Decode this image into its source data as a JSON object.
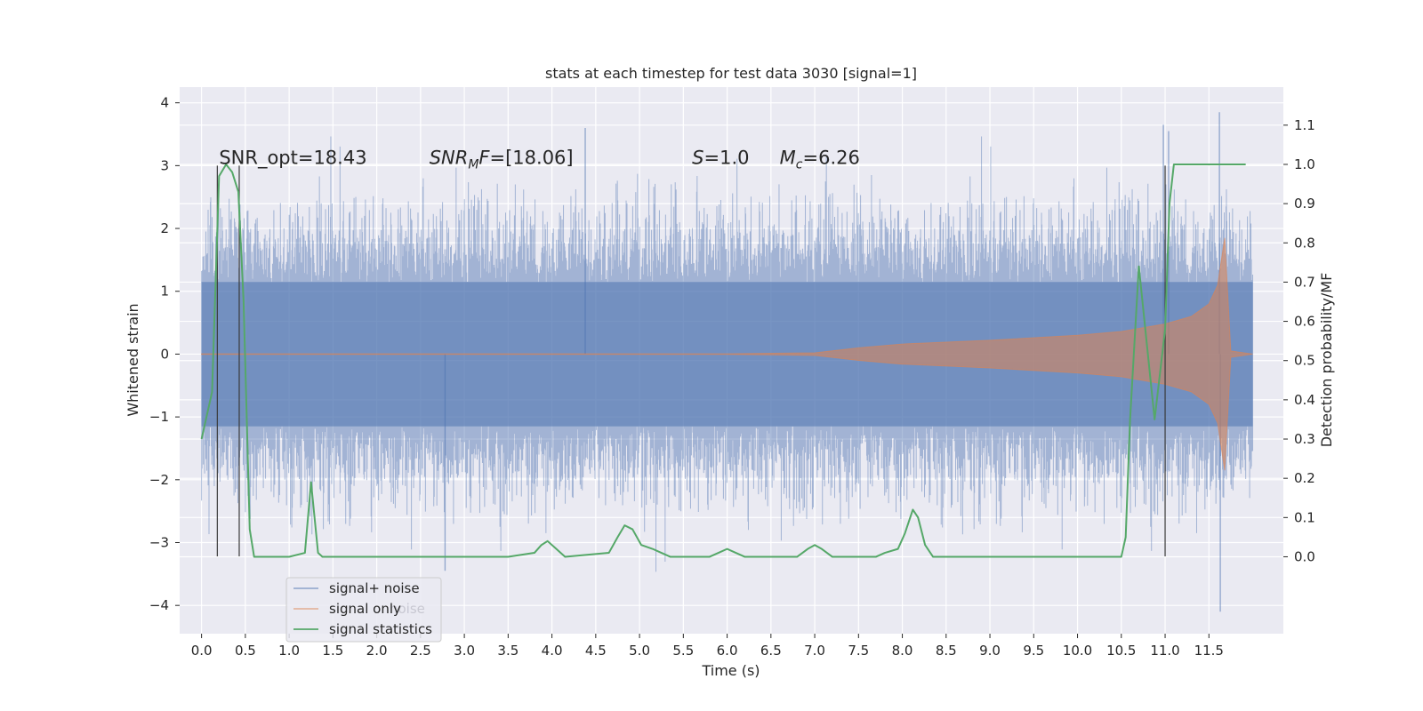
{
  "chart_data": {
    "type": "line",
    "title": "stats at each timestep for test data 3030 [signal=1]",
    "xlabel": "Time (s)",
    "ylabel": "Whitened strain",
    "y2label": "Detection probability/MF",
    "xlim": [
      -0.25,
      12.35
    ],
    "ylim": [
      -4.45,
      4.25
    ],
    "y2lim": [
      -0.196,
      1.197
    ],
    "xticks": [
      0.0,
      0.5,
      1.0,
      1.5,
      2.0,
      2.5,
      3.0,
      3.5,
      4.0,
      4.5,
      5.0,
      5.5,
      6.0,
      6.5,
      7.0,
      7.5,
      8.0,
      8.5,
      9.0,
      9.5,
      10.0,
      10.5,
      11.0,
      11.5
    ],
    "xtick_labels": [
      "0.0",
      "0.5",
      "1.0",
      "1.5",
      "2.0",
      "2.5",
      "3.0",
      "3.5",
      "4.0",
      "4.5",
      "5.0",
      "5.5",
      "6.0",
      "6.5",
      "7.0",
      "7.5",
      "8.0",
      "8.5",
      "9.0",
      "9.5",
      "10.0",
      "10.5",
      "11.0",
      "11.5"
    ],
    "yticks": [
      -4,
      -3,
      -2,
      -1,
      0,
      1,
      2,
      3,
      4
    ],
    "ytick_labels": [
      "−4",
      "−3",
      "−2",
      "−1",
      "0",
      "1",
      "2",
      "3",
      "4"
    ],
    "y2ticks": [
      0.0,
      0.1,
      0.2,
      0.3,
      0.4,
      0.5,
      0.6,
      0.7,
      0.8,
      0.9,
      1.0,
      1.1
    ],
    "y2tick_labels": [
      "0.0",
      "0.1",
      "0.2",
      "0.3",
      "0.4",
      "0.5",
      "0.6",
      "0.7",
      "0.8",
      "0.9",
      "1.0",
      "1.1"
    ],
    "grid": true,
    "legend_position": "lower-left",
    "annotations": [
      {
        "prefix": "SNR_opt=18.43",
        "x": 0.2,
        "y": 3.0
      },
      {
        "prefix": "",
        "italic": "SNR",
        "sub": "M",
        "italic2": "F",
        "suffix": "=[18.06]",
        "x": 2.6,
        "y": 3.0
      },
      {
        "prefix": "",
        "italic": "S",
        "sub": "",
        "italic2": "",
        "suffix": "=1.0",
        "x": 5.6,
        "y": 3.0
      },
      {
        "prefix": "",
        "italic": "M",
        "sub": "c",
        "italic2": "",
        "suffix": "=6.26",
        "x": 6.6,
        "y": 3.0
      }
    ],
    "vlines": [
      0.18,
      0.43,
      11.0
    ],
    "vline_range": [
      -3.22,
      3.0
    ],
    "series": [
      {
        "name": "signal+ noise",
        "color": "#4c72b0",
        "t_start": 0.0,
        "t_end": 12.0,
        "core_envelope": 1.15,
        "typical_peak": 1.8,
        "max_value": 3.85,
        "min_value": -4.1
      },
      {
        "name": "signal only",
        "color": "#dd8452",
        "t_start": 0.0,
        "t_end": 12.0,
        "merger_time": 11.68,
        "peak_amplitude": 1.85,
        "envelope": [
          [
            0.0,
            0.004
          ],
          [
            6.0,
            0.005
          ],
          [
            7.0,
            0.02
          ],
          [
            7.5,
            0.1
          ],
          [
            8.0,
            0.16
          ],
          [
            9.0,
            0.22
          ],
          [
            10.0,
            0.3
          ],
          [
            10.5,
            0.36
          ],
          [
            11.0,
            0.48
          ],
          [
            11.3,
            0.6
          ],
          [
            11.5,
            0.8
          ],
          [
            11.6,
            1.1
          ],
          [
            11.68,
            1.85
          ],
          [
            11.75,
            0.05
          ],
          [
            12.0,
            0.0
          ]
        ]
      },
      {
        "name": "signal statistics",
        "color": "#55a868",
        "axis": "right",
        "x": [
          0.0,
          0.12,
          0.2,
          0.28,
          0.35,
          0.42,
          0.48,
          0.55,
          0.6,
          0.65,
          0.8,
          1.0,
          1.18,
          1.25,
          1.33,
          1.38,
          2.0,
          2.1,
          3.5,
          3.8,
          3.88,
          3.95,
          4.05,
          4.15,
          4.65,
          4.75,
          4.83,
          4.92,
          5.02,
          5.15,
          5.25,
          5.35,
          5.45,
          5.8,
          5.9,
          6.0,
          6.1,
          6.2,
          6.8,
          6.92,
          7.0,
          7.08,
          7.2,
          7.5,
          7.7,
          7.8,
          7.95,
          8.03,
          8.12,
          8.18,
          8.26,
          8.35,
          9.5,
          10.0,
          10.5,
          10.55,
          10.6,
          10.7,
          10.88,
          11.0,
          11.05,
          11.1,
          11.5,
          11.92
        ],
        "y": [
          0.3,
          0.42,
          0.97,
          1.0,
          0.98,
          0.93,
          0.65,
          0.07,
          0.0,
          0.0,
          0.0,
          0.0,
          0.01,
          0.19,
          0.01,
          0.0,
          0.0,
          0.0,
          0.0,
          0.01,
          0.03,
          0.04,
          0.02,
          0.0,
          0.01,
          0.05,
          0.08,
          0.07,
          0.03,
          0.02,
          0.01,
          0.0,
          0.0,
          0.0,
          0.01,
          0.02,
          0.01,
          0.0,
          0.0,
          0.02,
          0.03,
          0.02,
          0.0,
          0.0,
          0.0,
          0.01,
          0.02,
          0.06,
          0.12,
          0.1,
          0.03,
          0.0,
          0.0,
          0.0,
          0.0,
          0.05,
          0.35,
          0.74,
          0.35,
          0.58,
          0.9,
          1.0,
          1.0,
          1.0
        ]
      }
    ]
  },
  "legend": {
    "items": [
      {
        "label": "signal+ noise",
        "color": "#4c72b0"
      },
      {
        "label": "signal only",
        "color": "#dd8452"
      },
      {
        "label": "signal statistics",
        "color": "#55a868"
      }
    ],
    "hidden_label_fragment": "noise"
  }
}
